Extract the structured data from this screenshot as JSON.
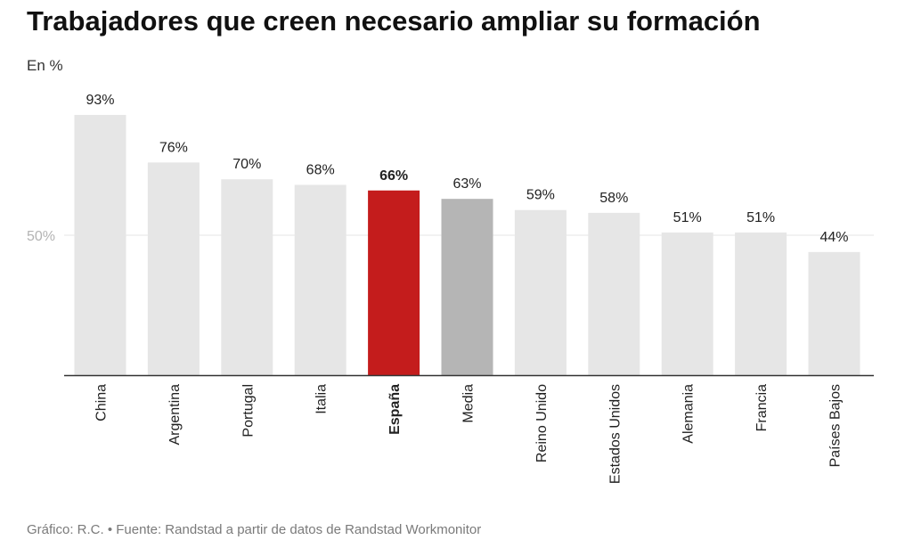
{
  "header": {
    "title": "Trabajadores que creen necesario ampliar su formación",
    "subtitle": "En %"
  },
  "footer": {
    "note": "Gráfico: R.C. • Fuente: Randstad a partir de datos de Randstad Workmonitor"
  },
  "colors": {
    "default_bar": "#e6e6e6",
    "highlight_bar": "#c41c1c",
    "average_bar": "#b5b5b5",
    "axis": "#333333",
    "gridline": "#e6e6e6",
    "tick_label": "#b3b3b3"
  },
  "chart_data": {
    "type": "bar",
    "title": "Trabajadores que creen necesario ampliar su formación",
    "subtitle": "En %",
    "categories": [
      "China",
      "Argentina",
      "Portugal",
      "Italia",
      "España",
      "Media",
      "Reino Unido",
      "Estados Unidos",
      "Alemania",
      "Francia",
      "Países Bajos"
    ],
    "values": [
      93,
      76,
      70,
      68,
      66,
      63,
      59,
      58,
      51,
      51,
      44
    ],
    "value_labels": [
      "93%",
      "76%",
      "70%",
      "68%",
      "66%",
      "63%",
      "59%",
      "58%",
      "51%",
      "51%",
      "44%"
    ],
    "highlight": "España",
    "average_category": "Media",
    "ylim": [
      0,
      100
    ],
    "yticks": [
      50
    ],
    "ytick_labels": [
      "50%"
    ],
    "grid": true,
    "legend": "none"
  }
}
